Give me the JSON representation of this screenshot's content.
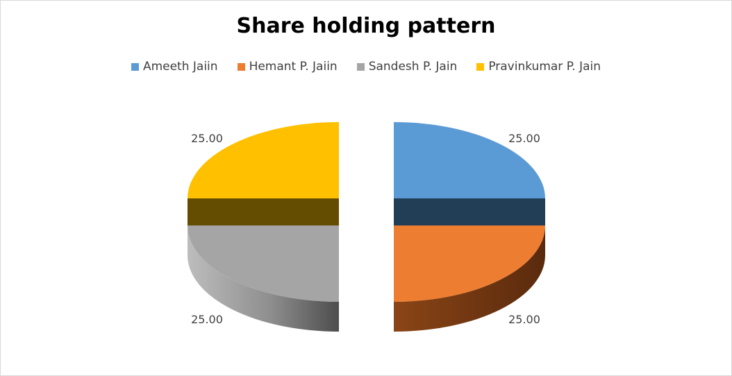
{
  "chart_data": {
    "type": "pie",
    "title": "Share holding pattern",
    "legend_position": "top",
    "slices": [
      {
        "label": "Ameeth Jaiin",
        "value": 25.0,
        "display": "25.00",
        "color": "#5b9bd5",
        "side_color": "#223d56"
      },
      {
        "label": "Hemant P. Jaiin",
        "value": 25.0,
        "display": "25.00",
        "color": "#ed7d31",
        "side_color": "#7a3a12"
      },
      {
        "label": "Sandesh P. Jain",
        "value": 25.0,
        "display": "25.00",
        "color": "#a5a5a5",
        "side_color": "#555555"
      },
      {
        "label": "Pravinkumar P. Jain",
        "value": 25.0,
        "display": "25.00",
        "color": "#ffc000",
        "side_color": "#654d00"
      }
    ]
  }
}
